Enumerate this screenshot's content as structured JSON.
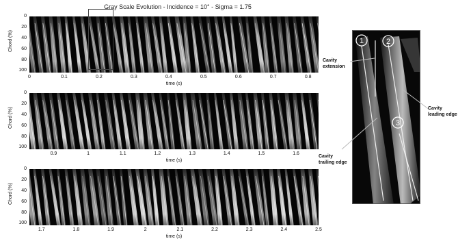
{
  "title": "Gray Scale Evolution - Incidence = 10° - Sigma = 1.75",
  "colors": {
    "image_bg": "#050505",
    "structure": "#d8d8d8"
  },
  "panels": [
    {
      "ylabel": "Chord (%)",
      "yticks": [
        "0",
        "20",
        "40",
        "60",
        "80",
        "100"
      ],
      "xlabel": "time (s)",
      "xrange": [
        0,
        0.83
      ],
      "xticks": [
        "0",
        "0.1",
        "0.2",
        "0.3",
        "0.4",
        "0.5",
        "0.6",
        "0.7",
        "0.8"
      ],
      "xtick_values": [
        0,
        0.1,
        0.2,
        0.3,
        0.4,
        0.5,
        0.6,
        0.7,
        0.8
      ]
    },
    {
      "ylabel": "Chord (%)",
      "yticks": [
        "0",
        "20",
        "40",
        "60",
        "80",
        "100"
      ],
      "xlabel": "time (s)",
      "xrange": [
        0.83,
        1.665
      ],
      "xticks": [
        "0.9",
        "1",
        "1.1",
        "1.2",
        "1.3",
        "1.4",
        "1.5",
        "1.6"
      ],
      "xtick_values": [
        0.9,
        1.0,
        1.1,
        1.2,
        1.3,
        1.4,
        1.5,
        1.6
      ]
    },
    {
      "ylabel": "Chord (%)",
      "yticks": [
        "0",
        "20",
        "40",
        "60",
        "80",
        "100"
      ],
      "xlabel": "time (s)",
      "xrange": [
        1.665,
        2.5
      ],
      "xticks": [
        "1.7",
        "1.8",
        "1.9",
        "2",
        "2.1",
        "2.2",
        "2.3",
        "2.4",
        "2.5"
      ],
      "xtick_values": [
        1.7,
        1.8,
        1.9,
        2.0,
        2.1,
        2.2,
        2.3,
        2.4,
        2.5
      ]
    }
  ],
  "zoom_range": [
    0.17,
    0.245
  ],
  "inset": {
    "markers": [
      "1",
      "2",
      "3"
    ],
    "labels": {
      "extension": [
        "Cavity",
        "extension"
      ],
      "leading": [
        "Cavity",
        "leading edge"
      ],
      "trailing": [
        "Cavity",
        "trailing edge"
      ]
    }
  }
}
